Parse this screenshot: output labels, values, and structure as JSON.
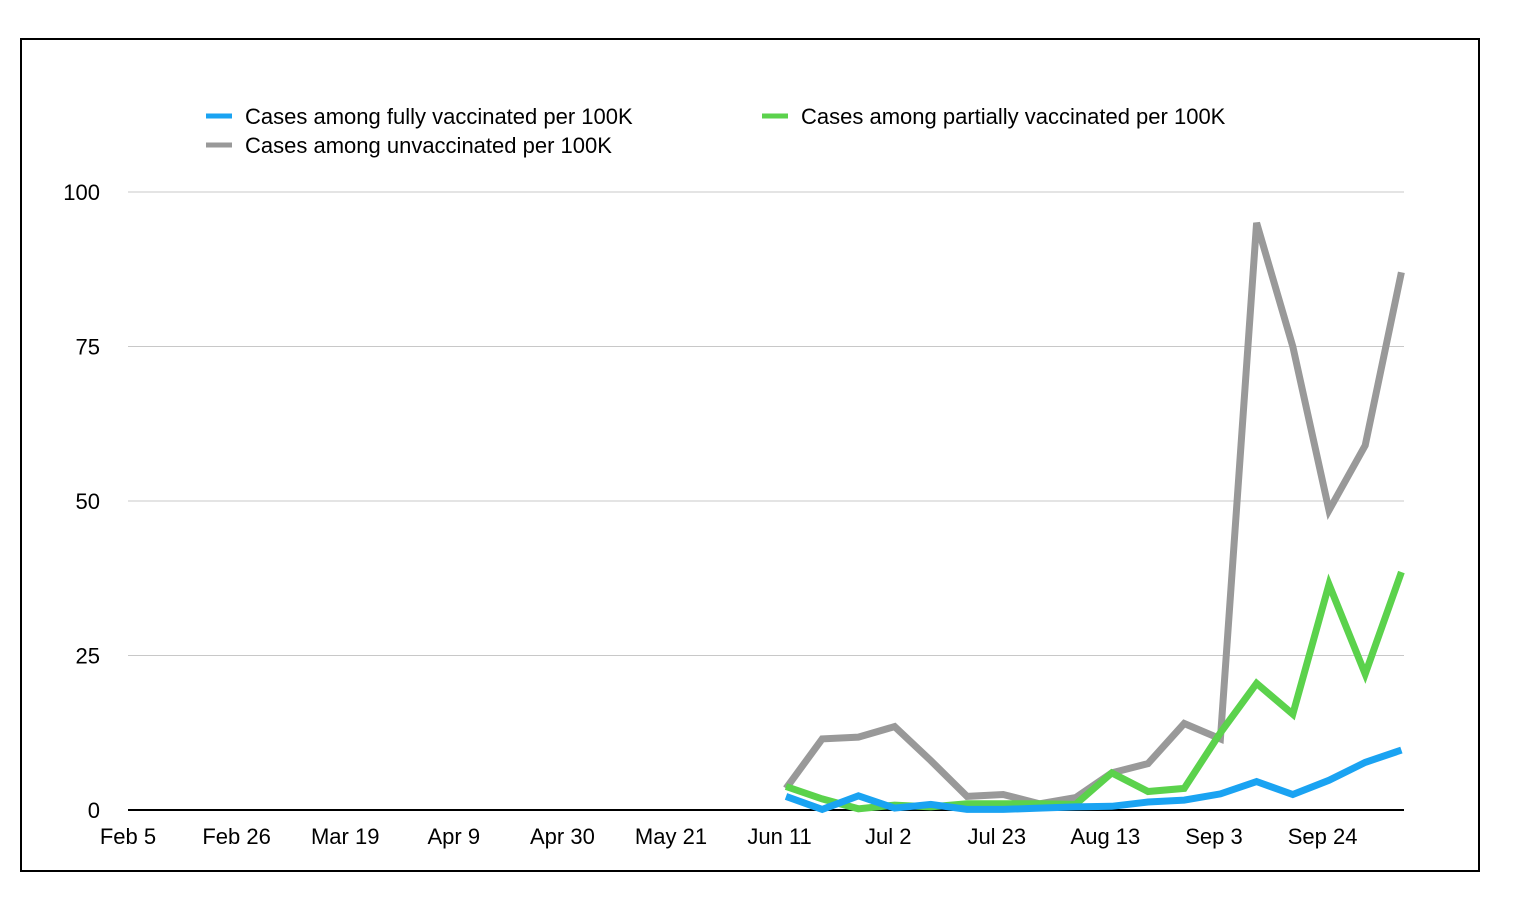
{
  "chart_data": {
    "type": "line",
    "title": "",
    "xlabel": "",
    "ylabel": "",
    "x_tick_labels": [
      "Feb 5",
      "Feb 26",
      "Mar 19",
      "Apr 9",
      "Apr 30",
      "May 21",
      "Jun 11",
      "Jul 2",
      "Jul 23",
      "Aug 13",
      "Sep 3",
      "Sep 24"
    ],
    "x": [
      "Jun 11",
      "Jun 18",
      "Jun 25",
      "Jul 2",
      "Jul 9",
      "Jul 16",
      "Jul 23",
      "Jul 30",
      "Aug 6",
      "Aug 13",
      "Aug 20",
      "Aug 27",
      "Sep 3",
      "Sep 10",
      "Sep 17",
      "Sep 24",
      "Oct 1",
      "Oct 8"
    ],
    "ylim": [
      0,
      100
    ],
    "y_ticks": [
      0,
      25,
      50,
      75,
      100
    ],
    "grid": true,
    "legend_position": "top",
    "series": [
      {
        "name": "Cases among fully vaccinated per 100K",
        "color": "#1aa3f2",
        "values": [
          2.2,
          0.1,
          2.3,
          0.3,
          0.9,
          0.1,
          0.1,
          0.3,
          0.5,
          0.6,
          1.3,
          1.6,
          2.6,
          4.6,
          2.5,
          4.8,
          7.7,
          9.7
        ]
      },
      {
        "name": "Cases among partially vaccinated per 100K",
        "color": "#5bd24c",
        "values": [
          3.8,
          1.8,
          0.2,
          0.8,
          0.5,
          1.0,
          1.0,
          1.0,
          0.9,
          6.0,
          3.0,
          3.5,
          12.5,
          20.5,
          15.5,
          36.5,
          22.0,
          38.5
        ]
      },
      {
        "name": "Cases among unvaccinated per 100K",
        "color": "#999999",
        "values": [
          3.5,
          11.5,
          11.8,
          13.5,
          8.0,
          2.2,
          2.5,
          1.0,
          2.0,
          6.0,
          7.5,
          14.0,
          11.5,
          95.0,
          75.0,
          48.5,
          59.0,
          87.0
        ]
      }
    ]
  }
}
